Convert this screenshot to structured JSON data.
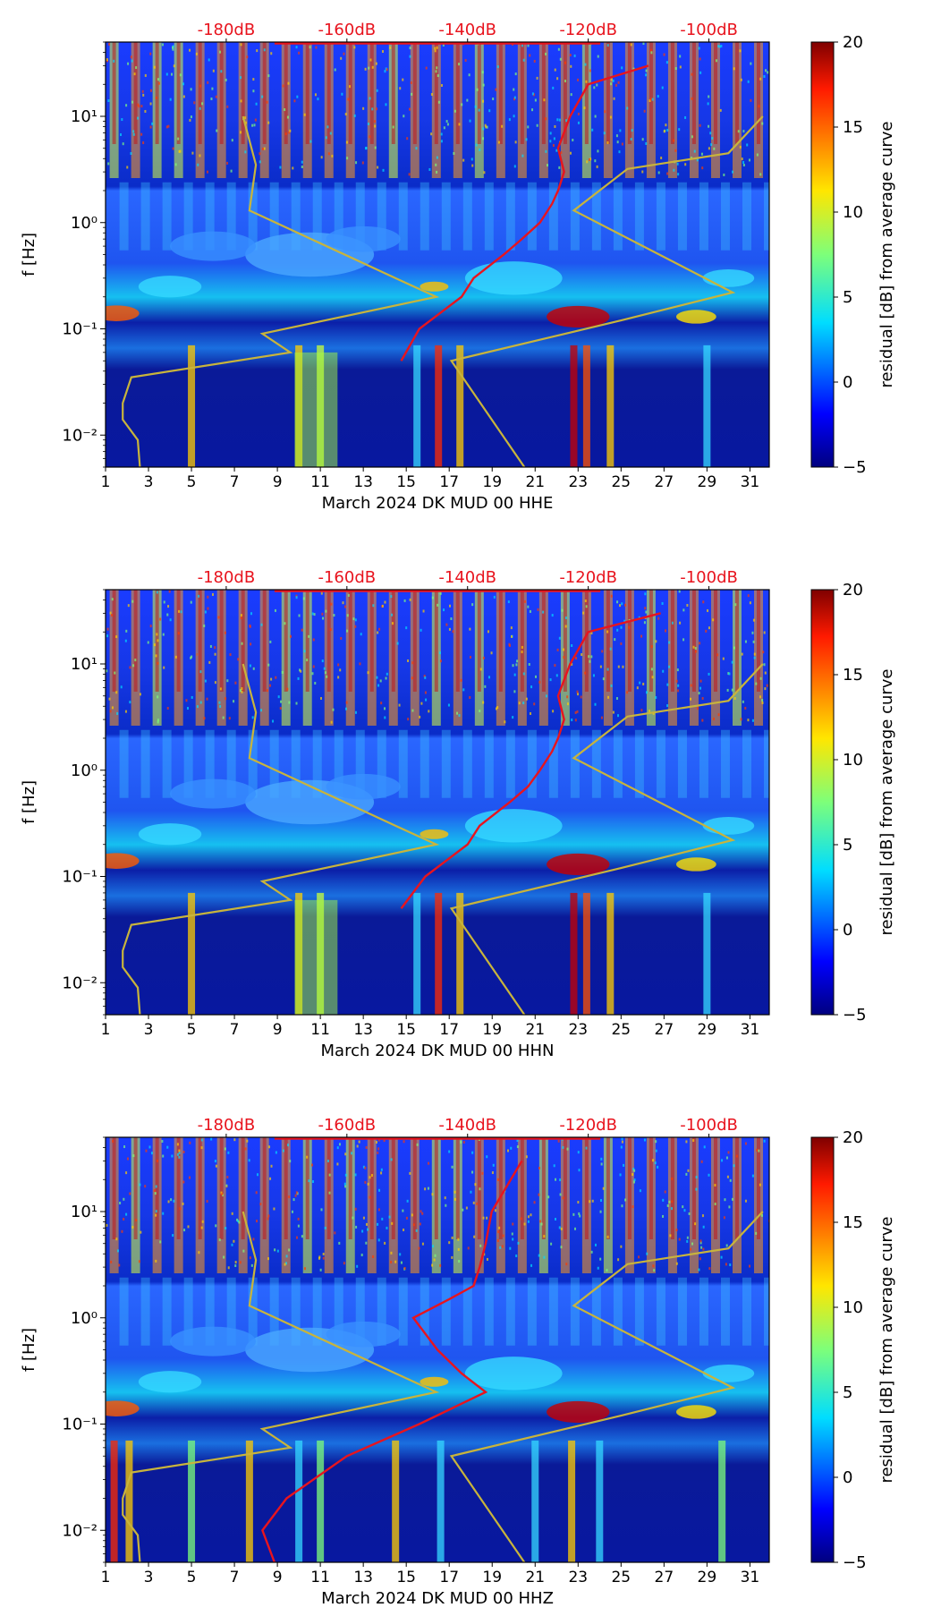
{
  "chart_data": [
    {
      "type": "heatmap",
      "xlabel": "March 2024 DK MUD 00 HHE",
      "ylabel": "f [Hz]",
      "x_ticks": [
        "1",
        "3",
        "5",
        "7",
        "9",
        "11",
        "13",
        "15",
        "17",
        "19",
        "21",
        "23",
        "25",
        "27",
        "29",
        "31"
      ],
      "y_ticks": [
        "10⁻²",
        "10⁻¹",
        "10⁰",
        "10¹"
      ],
      "top_ticks": [
        "-180dB",
        "-160dB",
        "-140dB",
        "-120dB",
        "-100dB"
      ],
      "colorbar": {
        "label": "residual [dB] from average curve",
        "ticks": [
          "20",
          "15",
          "10",
          "5",
          "0",
          "−5"
        ],
        "range": [
          -5,
          20
        ]
      },
      "red_curve": [
        [
          0.05,
          -151
        ],
        [
          0.1,
          -148
        ],
        [
          0.2,
          -141
        ],
        [
          0.3,
          -139
        ],
        [
          0.5,
          -134
        ],
        [
          0.7,
          -131
        ],
        [
          1.0,
          -128
        ],
        [
          1.5,
          -126
        ],
        [
          2.0,
          -125
        ],
        [
          3.0,
          -124
        ],
        [
          5.0,
          -125
        ],
        [
          10,
          -123
        ],
        [
          20,
          -120
        ],
        [
          30,
          -110
        ]
      ]
    },
    {
      "type": "heatmap",
      "xlabel": "March 2024 DK MUD 00 HHN",
      "ylabel": "f [Hz]",
      "x_ticks": [
        "1",
        "3",
        "5",
        "7",
        "9",
        "11",
        "13",
        "15",
        "17",
        "19",
        "21",
        "23",
        "25",
        "27",
        "29",
        "31"
      ],
      "y_ticks": [
        "10⁻²",
        "10⁻¹",
        "10⁰",
        "10¹"
      ],
      "top_ticks": [
        "-180dB",
        "-160dB",
        "-140dB",
        "-120dB",
        "-100dB"
      ],
      "colorbar": {
        "label": "residual [dB] from average curve",
        "ticks": [
          "20",
          "15",
          "10",
          "5",
          "0",
          "−5"
        ],
        "range": [
          -5,
          20
        ]
      },
      "red_curve": [
        [
          0.05,
          -151
        ],
        [
          0.1,
          -147
        ],
        [
          0.2,
          -140
        ],
        [
          0.3,
          -138
        ],
        [
          0.5,
          -133
        ],
        [
          0.7,
          -130
        ],
        [
          1.0,
          -128
        ],
        [
          1.5,
          -126
        ],
        [
          2.0,
          -125
        ],
        [
          3.0,
          -124
        ],
        [
          5.0,
          -125
        ],
        [
          10,
          -123
        ],
        [
          20,
          -120
        ],
        [
          30,
          -108
        ]
      ]
    },
    {
      "type": "heatmap",
      "xlabel": "March 2024 DK MUD 00 HHZ",
      "ylabel": "f [Hz]",
      "x_ticks": [
        "1",
        "3",
        "5",
        "7",
        "9",
        "11",
        "13",
        "15",
        "17",
        "19",
        "21",
        "23",
        "25",
        "27",
        "29",
        "31"
      ],
      "y_ticks": [
        "10⁻²",
        "10⁻¹",
        "10⁰",
        "10¹"
      ],
      "top_ticks": [
        "-180dB",
        "-160dB",
        "-140dB",
        "-120dB",
        "-100dB"
      ],
      "colorbar": {
        "label": "residual [dB] from average curve",
        "ticks": [
          "20",
          "15",
          "10",
          "5",
          "0",
          "−5"
        ],
        "range": [
          -5,
          20
        ]
      },
      "red_curve": [
        [
          0.005,
          -172
        ],
        [
          0.01,
          -174
        ],
        [
          0.02,
          -170
        ],
        [
          0.05,
          -160
        ],
        [
          0.1,
          -148
        ],
        [
          0.2,
          -137
        ],
        [
          0.3,
          -141
        ],
        [
          0.5,
          -145
        ],
        [
          1.0,
          -149
        ],
        [
          1.5,
          -143
        ],
        [
          2.0,
          -139
        ],
        [
          3.0,
          -138
        ],
        [
          5.0,
          -137
        ],
        [
          10,
          -136
        ],
        [
          30,
          -131
        ]
      ]
    }
  ],
  "colors": {
    "red_curve": "#e8141e",
    "yellow_curve": "#c8b43c",
    "top_tick_color": "#e8141e"
  }
}
